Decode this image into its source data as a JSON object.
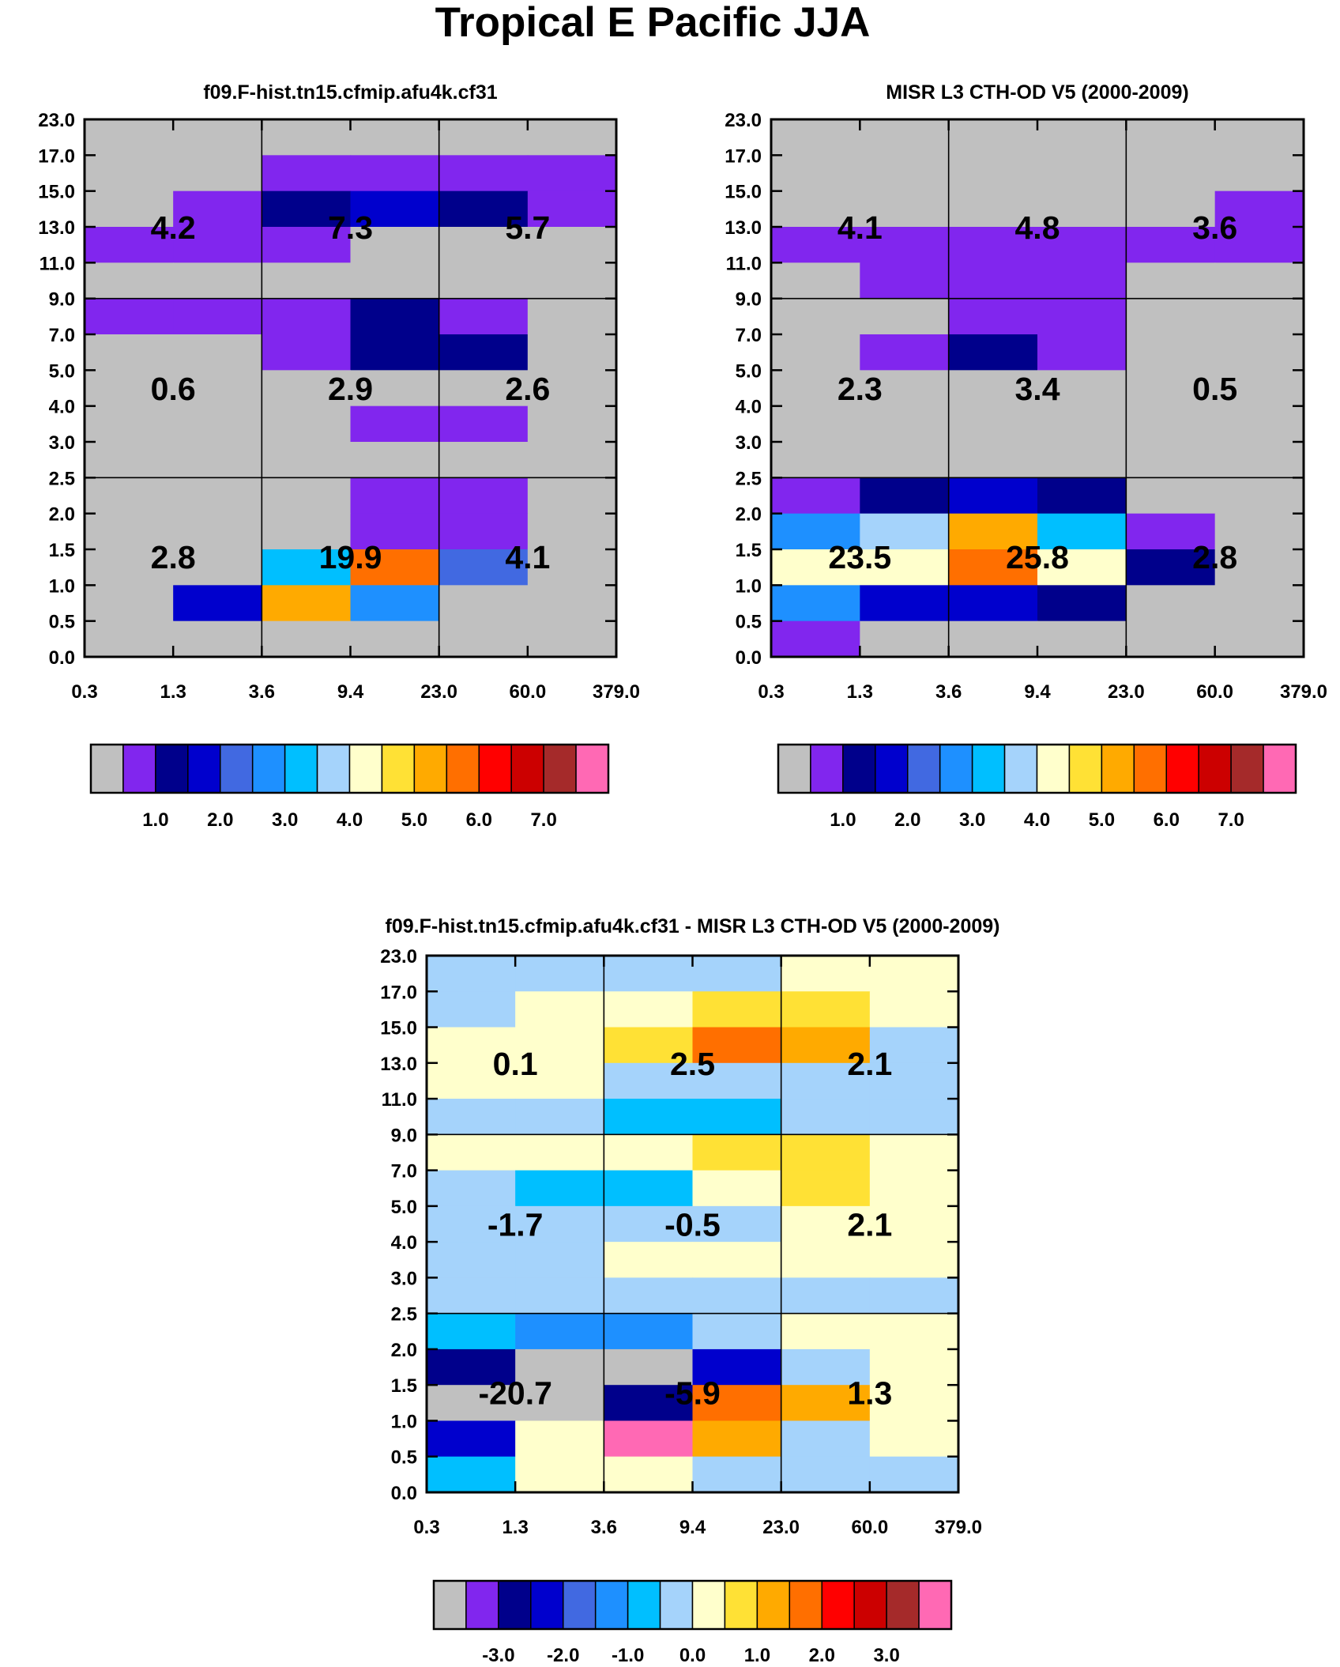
{
  "figure_title": "Tropical E Pacific JJA",
  "palette": [
    "#c0c0c0",
    "#8126ee",
    "#00008b",
    "#0000cd",
    "#4169e1",
    "#1e90ff",
    "#00bfff",
    "#a5d3fb",
    "#ffffcc",
    "#ffe135",
    "#ffaa00",
    "#ff6f00",
    "#ff0000",
    "#cc0000",
    "#a52a2a",
    "#ff69b4"
  ],
  "chart_data": [
    {
      "type": "heatmap",
      "title": "f09.F-hist.tn15.cfmip.afu4k.cf31",
      "x_ticks": [
        "0.3",
        "1.3",
        "3.6",
        "9.4",
        "23.0",
        "60.0",
        "379.0"
      ],
      "y_ticks": [
        "0.0",
        "0.5",
        "1.0",
        "1.5",
        "2.0",
        "2.5",
        "3.0",
        "4.0",
        "5.0",
        "7.0",
        "9.0",
        "11.0",
        "13.0",
        "15.0",
        "17.0",
        "23.0"
      ],
      "color_index_rows_top_to_bottom": [
        [
          0,
          0,
          0,
          0,
          0,
          0
        ],
        [
          0,
          0,
          1,
          1,
          1,
          1
        ],
        [
          0,
          1,
          2,
          3,
          2,
          1
        ],
        [
          1,
          1,
          1,
          0,
          0,
          0
        ],
        [
          0,
          0,
          0,
          0,
          0,
          0
        ],
        [
          1,
          1,
          1,
          2,
          1,
          0
        ],
        [
          0,
          0,
          1,
          2,
          2,
          0
        ],
        [
          0,
          0,
          0,
          0,
          0,
          0
        ],
        [
          0,
          0,
          0,
          1,
          1,
          0
        ],
        [
          0,
          0,
          0,
          0,
          0,
          0
        ],
        [
          0,
          0,
          0,
          1,
          1,
          0
        ],
        [
          0,
          0,
          0,
          1,
          1,
          0
        ],
        [
          0,
          0,
          6,
          11,
          4,
          0
        ],
        [
          0,
          3,
          10,
          5,
          0,
          0
        ],
        [
          0,
          0,
          0,
          0,
          0,
          0
        ]
      ],
      "box_sums": [
        {
          "tau": "0.3-3.6",
          "height": "7.0-23.0",
          "value": "4.2"
        },
        {
          "tau": "3.6-23.0",
          "height": "7.0-23.0",
          "value": "7.3"
        },
        {
          "tau": "23.0-379.0",
          "height": "7.0-23.0",
          "value": "5.7"
        },
        {
          "tau": "0.3-3.6",
          "height": "3.0-7.0",
          "value": "0.6"
        },
        {
          "tau": "3.6-23.0",
          "height": "3.0-7.0",
          "value": "2.9"
        },
        {
          "tau": "23.0-379.0",
          "height": "3.0-7.0",
          "value": "2.6"
        },
        {
          "tau": "0.3-3.6",
          "height": "0.0-3.0",
          "value": "2.8"
        },
        {
          "tau": "3.6-23.0",
          "height": "0.0-3.0",
          "value": "19.9"
        },
        {
          "tau": "23.0-379.0",
          "height": "0.0-3.0",
          "value": "4.1"
        }
      ],
      "colorbar_ticks": [
        "1.0",
        "2.0",
        "3.0",
        "4.0",
        "5.0",
        "6.0",
        "7.0"
      ]
    },
    {
      "type": "heatmap",
      "title": "MISR L3 CTH-OD V5 (2000-2009)",
      "x_ticks": [
        "0.3",
        "1.3",
        "3.6",
        "9.4",
        "23.0",
        "60.0",
        "379.0"
      ],
      "y_ticks": [
        "0.0",
        "0.5",
        "1.0",
        "1.5",
        "2.0",
        "2.5",
        "3.0",
        "4.0",
        "5.0",
        "7.0",
        "9.0",
        "11.0",
        "13.0",
        "15.0",
        "17.0",
        "23.0"
      ],
      "color_index_rows_top_to_bottom": [
        [
          0,
          0,
          0,
          0,
          0,
          0
        ],
        [
          0,
          0,
          0,
          0,
          0,
          0
        ],
        [
          0,
          0,
          0,
          0,
          0,
          1
        ],
        [
          1,
          1,
          1,
          1,
          1,
          1
        ],
        [
          0,
          1,
          1,
          1,
          0,
          0
        ],
        [
          0,
          0,
          1,
          1,
          0,
          0
        ],
        [
          0,
          1,
          2,
          1,
          0,
          0
        ],
        [
          0,
          0,
          0,
          0,
          0,
          0
        ],
        [
          0,
          0,
          0,
          0,
          0,
          0
        ],
        [
          0,
          0,
          0,
          0,
          0,
          0
        ],
        [
          1,
          2,
          3,
          2,
          0,
          0
        ],
        [
          5,
          7,
          10,
          6,
          1,
          0
        ],
        [
          8,
          8,
          11,
          8,
          2,
          0
        ],
        [
          5,
          3,
          3,
          2,
          0,
          0
        ],
        [
          1,
          0,
          0,
          0,
          0,
          0
        ]
      ],
      "box_sums": [
        {
          "tau": "0.3-3.6",
          "height": "7.0-23.0",
          "value": "4.1"
        },
        {
          "tau": "3.6-23.0",
          "height": "7.0-23.0",
          "value": "4.8"
        },
        {
          "tau": "23.0-379.0",
          "height": "7.0-23.0",
          "value": "3.6"
        },
        {
          "tau": "0.3-3.6",
          "height": "3.0-7.0",
          "value": "2.3"
        },
        {
          "tau": "3.6-23.0",
          "height": "3.0-7.0",
          "value": "3.4"
        },
        {
          "tau": "23.0-379.0",
          "height": "3.0-7.0",
          "value": "0.5"
        },
        {
          "tau": "0.3-3.6",
          "height": "0.0-3.0",
          "value": "23.5"
        },
        {
          "tau": "3.6-23.0",
          "height": "0.0-3.0",
          "value": "25.8"
        },
        {
          "tau": "23.0-379.0",
          "height": "0.0-3.0",
          "value": "2.8"
        }
      ],
      "colorbar_ticks": [
        "1.0",
        "2.0",
        "3.0",
        "4.0",
        "5.0",
        "6.0",
        "7.0"
      ]
    },
    {
      "type": "heatmap",
      "title": "f09.F-hist.tn15.cfmip.afu4k.cf31 - MISR L3 CTH-OD V5 (2000-2009)",
      "x_ticks": [
        "0.3",
        "1.3",
        "3.6",
        "9.4",
        "23.0",
        "60.0",
        "379.0"
      ],
      "y_ticks": [
        "0.0",
        "0.5",
        "1.0",
        "1.5",
        "2.0",
        "2.5",
        "3.0",
        "4.0",
        "5.0",
        "7.0",
        "9.0",
        "11.0",
        "13.0",
        "15.0",
        "17.0",
        "23.0"
      ],
      "color_index_rows_top_to_bottom": [
        [
          7,
          7,
          7,
          7,
          8,
          8
        ],
        [
          7,
          8,
          8,
          9,
          9,
          8
        ],
        [
          8,
          8,
          9,
          11,
          10,
          7
        ],
        [
          8,
          8,
          7,
          7,
          7,
          7
        ],
        [
          7,
          7,
          6,
          6,
          7,
          7
        ],
        [
          8,
          8,
          8,
          9,
          9,
          8
        ],
        [
          7,
          6,
          6,
          8,
          9,
          8
        ],
        [
          7,
          7,
          7,
          7,
          8,
          8
        ],
        [
          7,
          7,
          8,
          8,
          8,
          8
        ],
        [
          7,
          7,
          7,
          7,
          7,
          7
        ],
        [
          6,
          5,
          5,
          7,
          8,
          8
        ],
        [
          2,
          0,
          0,
          3,
          7,
          8
        ],
        [
          0,
          0,
          2,
          11,
          10,
          8
        ],
        [
          3,
          8,
          15,
          10,
          7,
          8
        ],
        [
          6,
          8,
          8,
          7,
          7,
          7
        ]
      ],
      "box_sums": [
        {
          "tau": "0.3-3.6",
          "height": "7.0-23.0",
          "value": "0.1"
        },
        {
          "tau": "3.6-23.0",
          "height": "7.0-23.0",
          "value": "2.5"
        },
        {
          "tau": "23.0-379.0",
          "height": "7.0-23.0",
          "value": "2.1"
        },
        {
          "tau": "0.3-3.6",
          "height": "3.0-7.0",
          "value": "-1.7"
        },
        {
          "tau": "3.6-23.0",
          "height": "3.0-7.0",
          "value": "-0.5"
        },
        {
          "tau": "23.0-379.0",
          "height": "3.0-7.0",
          "value": "2.1"
        },
        {
          "tau": "0.3-3.6",
          "height": "0.0-3.0",
          "value": "-20.7"
        },
        {
          "tau": "3.6-23.0",
          "height": "0.0-3.0",
          "value": "-5.9"
        },
        {
          "tau": "23.0-379.0",
          "height": "0.0-3.0",
          "value": "1.3"
        }
      ],
      "colorbar_ticks": [
        "-3.0",
        "-2.0",
        "-1.0",
        "0.0",
        "1.0",
        "2.0",
        "3.0"
      ]
    }
  ]
}
